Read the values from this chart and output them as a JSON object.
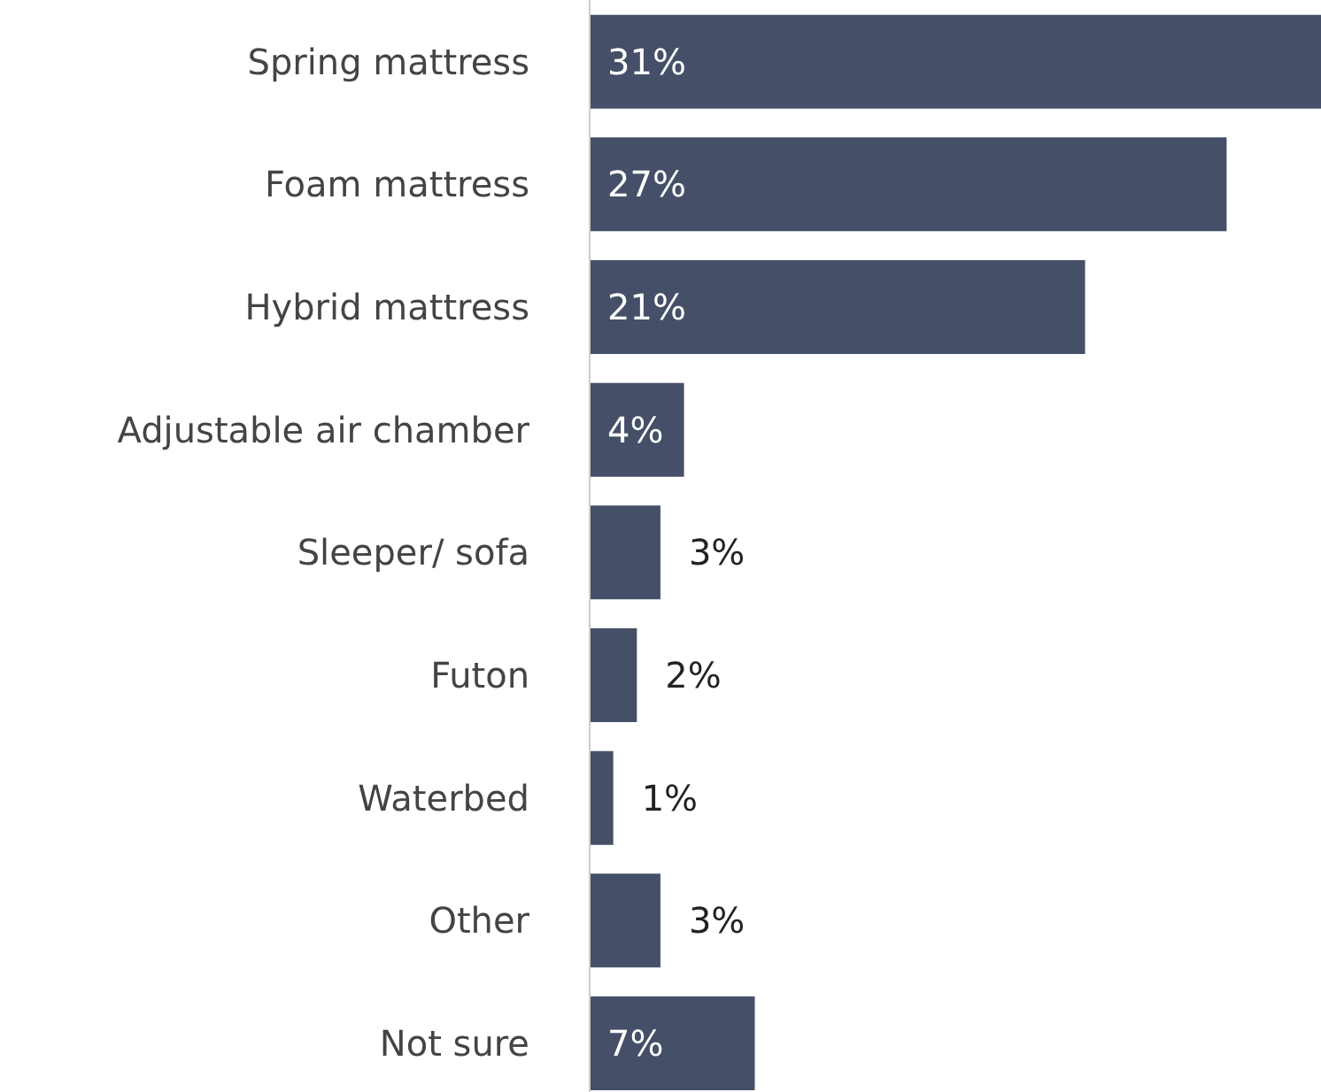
{
  "chart_data": {
    "type": "bar",
    "orientation": "horizontal",
    "categories": [
      "Spring mattress",
      "Foam mattress",
      "Hybrid mattress",
      "Adjustable air chamber",
      "Sleeper/ sofa",
      "Futon",
      "Waterbed",
      "Other",
      "Not sure"
    ],
    "values": [
      31,
      27,
      21,
      4,
      3,
      2,
      1,
      3,
      7
    ],
    "value_labels": [
      "31%",
      "27%",
      "21%",
      "4%",
      "3%",
      "2%",
      "1%",
      "3%",
      "7%"
    ],
    "color": "#455068"
  }
}
